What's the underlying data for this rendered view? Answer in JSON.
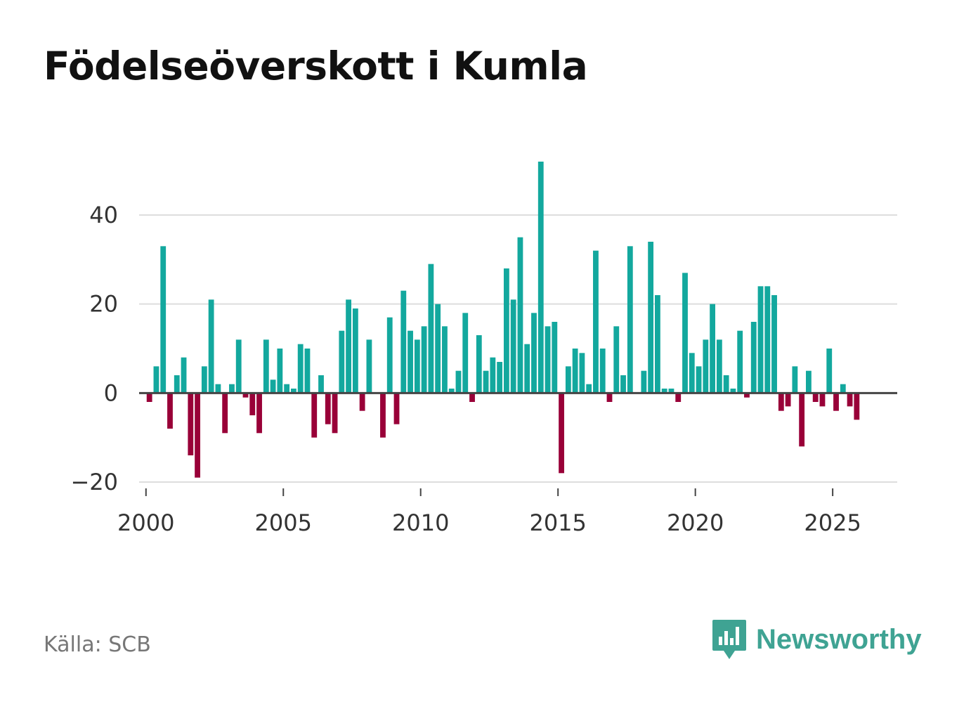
{
  "title": "Födelseöverskott i Kumla",
  "source": "Källa: SCB",
  "logo": {
    "text": "Newsworthy",
    "icon": "newsworthy-logo-icon",
    "color": "#3fa393"
  },
  "colors": {
    "positive": "#13a89e",
    "negative": "#990038",
    "grid": "#dddddd",
    "zero": "#444444"
  },
  "chart_data": {
    "type": "bar",
    "title": "Födelseöverskott i Kumla",
    "xlabel": "",
    "ylabel": "",
    "ylim": [
      -20,
      52
    ],
    "xlim": [
      1999.75,
      2027.35
    ],
    "yticks": [
      -20,
      0,
      20,
      40
    ],
    "ytick_labels": [
      "−20",
      "0",
      "20",
      "40"
    ],
    "xticks": [
      2000,
      2005,
      2010,
      2015,
      2020,
      2025
    ],
    "xtick_labels": [
      "2000",
      "2005",
      "2010",
      "2015",
      "2020",
      "2025"
    ],
    "grid": true,
    "frequency": "quarterly",
    "start": "2000 Q1",
    "series": [
      {
        "name": "Födelseöverskott",
        "values": [
          -2,
          6,
          33,
          -8,
          4,
          8,
          -14,
          -19,
          6,
          21,
          2,
          -9,
          2,
          12,
          -1,
          -5,
          -9,
          12,
          3,
          10,
          2,
          1,
          11,
          10,
          -10,
          4,
          -7,
          -9,
          14,
          21,
          19,
          -4,
          12,
          0,
          -10,
          17,
          -7,
          23,
          14,
          12,
          15,
          29,
          20,
          15,
          1,
          5,
          18,
          -2,
          13,
          5,
          8,
          7,
          28,
          21,
          35,
          11,
          18,
          52,
          15,
          16,
          -18,
          6,
          10,
          9,
          2,
          32,
          10,
          -2,
          15,
          4,
          33,
          0,
          5,
          34,
          22,
          1,
          1,
          -2,
          27,
          9,
          6,
          12,
          20,
          12,
          4,
          1,
          14,
          -1,
          16,
          24,
          24,
          22,
          -4,
          -3,
          6,
          -12,
          5,
          -2,
          -3,
          10,
          -4,
          2,
          -3,
          -6
        ]
      }
    ]
  }
}
